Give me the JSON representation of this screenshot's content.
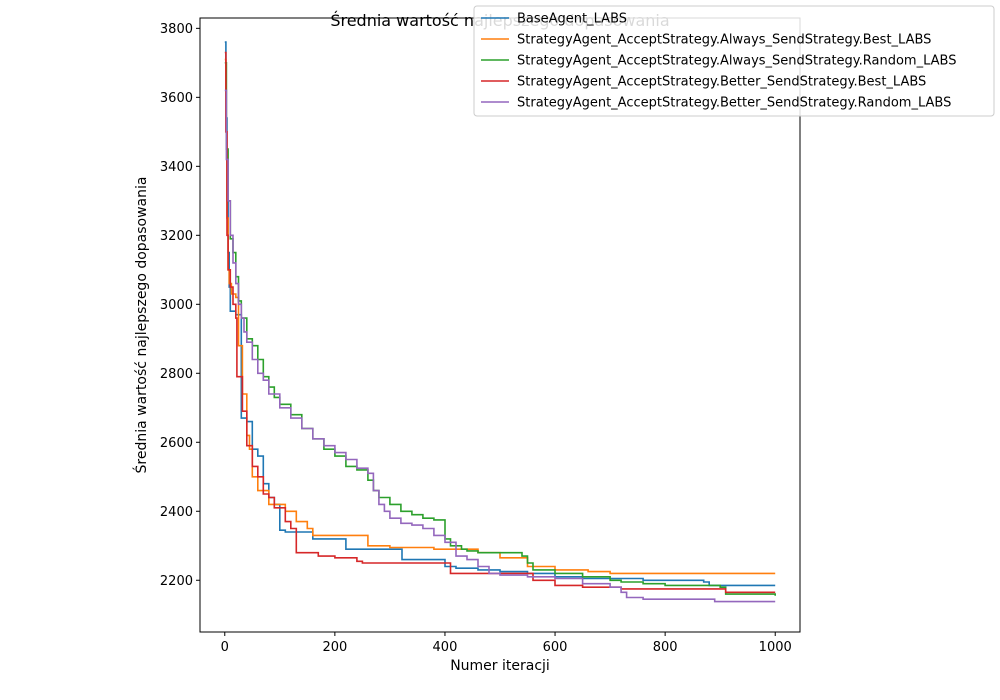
{
  "chart_data": {
    "type": "line",
    "title": "Średnia wartość najlepszego dopasowania",
    "xlabel": "Numer iteracji",
    "ylabel": "Średnia wartość najlepszego dopasowania",
    "xlim": [
      -45,
      1045
    ],
    "ylim": [
      2050,
      3830
    ],
    "xticks": [
      0,
      200,
      400,
      600,
      800,
      1000
    ],
    "yticks": [
      2200,
      2400,
      2600,
      2800,
      3000,
      3200,
      3400,
      3600,
      3800
    ],
    "grid": false,
    "legend_position": "top-right",
    "series": [
      {
        "name": "BaseAgent_LABS",
        "color": "#1f77b4",
        "points": [
          [
            0,
            3760
          ],
          [
            2,
            3540
          ],
          [
            4,
            3300
          ],
          [
            6,
            3150
          ],
          [
            8,
            3050
          ],
          [
            10,
            2980
          ],
          [
            20,
            2970
          ],
          [
            30,
            2670
          ],
          [
            40,
            2660
          ],
          [
            50,
            2580
          ],
          [
            60,
            2560
          ],
          [
            70,
            2480
          ],
          [
            80,
            2440
          ],
          [
            90,
            2420
          ],
          [
            100,
            2345
          ],
          [
            110,
            2340
          ],
          [
            140,
            2340
          ],
          [
            160,
            2320
          ],
          [
            200,
            2320
          ],
          [
            220,
            2290
          ],
          [
            320,
            2290
          ],
          [
            322,
            2260
          ],
          [
            380,
            2260
          ],
          [
            400,
            2240
          ],
          [
            420,
            2235
          ],
          [
            460,
            2230
          ],
          [
            500,
            2225
          ],
          [
            550,
            2220
          ],
          [
            600,
            2210
          ],
          [
            650,
            2205
          ],
          [
            700,
            2205
          ],
          [
            760,
            2200
          ],
          [
            800,
            2200
          ],
          [
            870,
            2195
          ],
          [
            880,
            2185
          ],
          [
            1000,
            2185
          ]
        ]
      },
      {
        "name": "StrategyAgent_AcceptStrategy.Always_SendStrategy.Best_LABS",
        "color": "#ff7f0e",
        "points": [
          [
            0,
            3710
          ],
          [
            2,
            3500
          ],
          [
            4,
            3250
          ],
          [
            6,
            3100
          ],
          [
            8,
            3060
          ],
          [
            12,
            3030
          ],
          [
            20,
            3020
          ],
          [
            25,
            2880
          ],
          [
            30,
            2880
          ],
          [
            32,
            2740
          ],
          [
            38,
            2740
          ],
          [
            40,
            2620
          ],
          [
            45,
            2580
          ],
          [
            50,
            2500
          ],
          [
            60,
            2460
          ],
          [
            70,
            2460
          ],
          [
            80,
            2420
          ],
          [
            100,
            2420
          ],
          [
            110,
            2400
          ],
          [
            130,
            2370
          ],
          [
            150,
            2350
          ],
          [
            160,
            2330
          ],
          [
            200,
            2330
          ],
          [
            250,
            2330
          ],
          [
            260,
            2300
          ],
          [
            280,
            2300
          ],
          [
            300,
            2295
          ],
          [
            380,
            2290
          ],
          [
            440,
            2290
          ],
          [
            460,
            2280
          ],
          [
            500,
            2265
          ],
          [
            550,
            2240
          ],
          [
            600,
            2230
          ],
          [
            660,
            2225
          ],
          [
            700,
            2220
          ],
          [
            1000,
            2220
          ]
        ]
      },
      {
        "name": "StrategyAgent_AcceptStrategy.Always_SendStrategy.Random_LABS",
        "color": "#2ca02c",
        "points": [
          [
            0,
            3700
          ],
          [
            3,
            3450
          ],
          [
            6,
            3300
          ],
          [
            10,
            3190
          ],
          [
            15,
            3150
          ],
          [
            20,
            3080
          ],
          [
            25,
            3010
          ],
          [
            30,
            2960
          ],
          [
            40,
            2900
          ],
          [
            50,
            2880
          ],
          [
            60,
            2840
          ],
          [
            70,
            2790
          ],
          [
            80,
            2760
          ],
          [
            90,
            2730
          ],
          [
            100,
            2710
          ],
          [
            120,
            2680
          ],
          [
            140,
            2640
          ],
          [
            160,
            2610
          ],
          [
            180,
            2580
          ],
          [
            200,
            2560
          ],
          [
            220,
            2530
          ],
          [
            240,
            2520
          ],
          [
            260,
            2490
          ],
          [
            270,
            2460
          ],
          [
            280,
            2440
          ],
          [
            300,
            2420
          ],
          [
            320,
            2400
          ],
          [
            340,
            2390
          ],
          [
            360,
            2380
          ],
          [
            380,
            2375
          ],
          [
            390,
            2375
          ],
          [
            400,
            2320
          ],
          [
            410,
            2300
          ],
          [
            420,
            2300
          ],
          [
            430,
            2290
          ],
          [
            440,
            2285
          ],
          [
            460,
            2280
          ],
          [
            520,
            2280
          ],
          [
            540,
            2270
          ],
          [
            550,
            2250
          ],
          [
            560,
            2230
          ],
          [
            600,
            2220
          ],
          [
            650,
            2210
          ],
          [
            700,
            2200
          ],
          [
            720,
            2195
          ],
          [
            760,
            2190
          ],
          [
            800,
            2185
          ],
          [
            900,
            2180
          ],
          [
            910,
            2160
          ],
          [
            1000,
            2155
          ]
        ]
      },
      {
        "name": "StrategyAgent_AcceptStrategy.Better_SendStrategy.Best_LABS",
        "color": "#d62728",
        "points": [
          [
            0,
            3730
          ],
          [
            2,
            3500
          ],
          [
            4,
            3200
          ],
          [
            6,
            3100
          ],
          [
            10,
            3050
          ],
          [
            15,
            3000
          ],
          [
            20,
            2960
          ],
          [
            22,
            2790
          ],
          [
            30,
            2790
          ],
          [
            32,
            2690
          ],
          [
            38,
            2690
          ],
          [
            40,
            2590
          ],
          [
            48,
            2590
          ],
          [
            50,
            2530
          ],
          [
            60,
            2500
          ],
          [
            70,
            2450
          ],
          [
            80,
            2440
          ],
          [
            90,
            2410
          ],
          [
            110,
            2370
          ],
          [
            120,
            2350
          ],
          [
            130,
            2280
          ],
          [
            150,
            2280
          ],
          [
            170,
            2270
          ],
          [
            200,
            2265
          ],
          [
            240,
            2255
          ],
          [
            250,
            2250
          ],
          [
            400,
            2250
          ],
          [
            410,
            2220
          ],
          [
            550,
            2220
          ],
          [
            560,
            2200
          ],
          [
            600,
            2185
          ],
          [
            650,
            2180
          ],
          [
            700,
            2180
          ],
          [
            720,
            2175
          ],
          [
            900,
            2175
          ],
          [
            910,
            2165
          ],
          [
            1000,
            2165
          ]
        ]
      },
      {
        "name": "StrategyAgent_AcceptStrategy.Better_SendStrategy.Random_LABS",
        "color": "#9467bd",
        "points": [
          [
            0,
            3620
          ],
          [
            3,
            3420
          ],
          [
            6,
            3300
          ],
          [
            10,
            3200
          ],
          [
            15,
            3120
          ],
          [
            20,
            3060
          ],
          [
            25,
            3000
          ],
          [
            30,
            2960
          ],
          [
            35,
            2920
          ],
          [
            40,
            2890
          ],
          [
            50,
            2840
          ],
          [
            60,
            2800
          ],
          [
            70,
            2780
          ],
          [
            80,
            2740
          ],
          [
            100,
            2700
          ],
          [
            120,
            2670
          ],
          [
            140,
            2640
          ],
          [
            160,
            2610
          ],
          [
            180,
            2590
          ],
          [
            200,
            2570
          ],
          [
            220,
            2550
          ],
          [
            240,
            2525
          ],
          [
            260,
            2510
          ],
          [
            270,
            2460
          ],
          [
            280,
            2420
          ],
          [
            290,
            2400
          ],
          [
            300,
            2380
          ],
          [
            320,
            2365
          ],
          [
            340,
            2360
          ],
          [
            360,
            2350
          ],
          [
            380,
            2330
          ],
          [
            400,
            2310
          ],
          [
            420,
            2270
          ],
          [
            440,
            2260
          ],
          [
            460,
            2240
          ],
          [
            480,
            2220
          ],
          [
            500,
            2215
          ],
          [
            550,
            2210
          ],
          [
            600,
            2205
          ],
          [
            650,
            2190
          ],
          [
            700,
            2180
          ],
          [
            720,
            2165
          ],
          [
            730,
            2150
          ],
          [
            760,
            2145
          ],
          [
            880,
            2145
          ],
          [
            890,
            2138
          ],
          [
            1000,
            2138
          ]
        ]
      }
    ]
  }
}
